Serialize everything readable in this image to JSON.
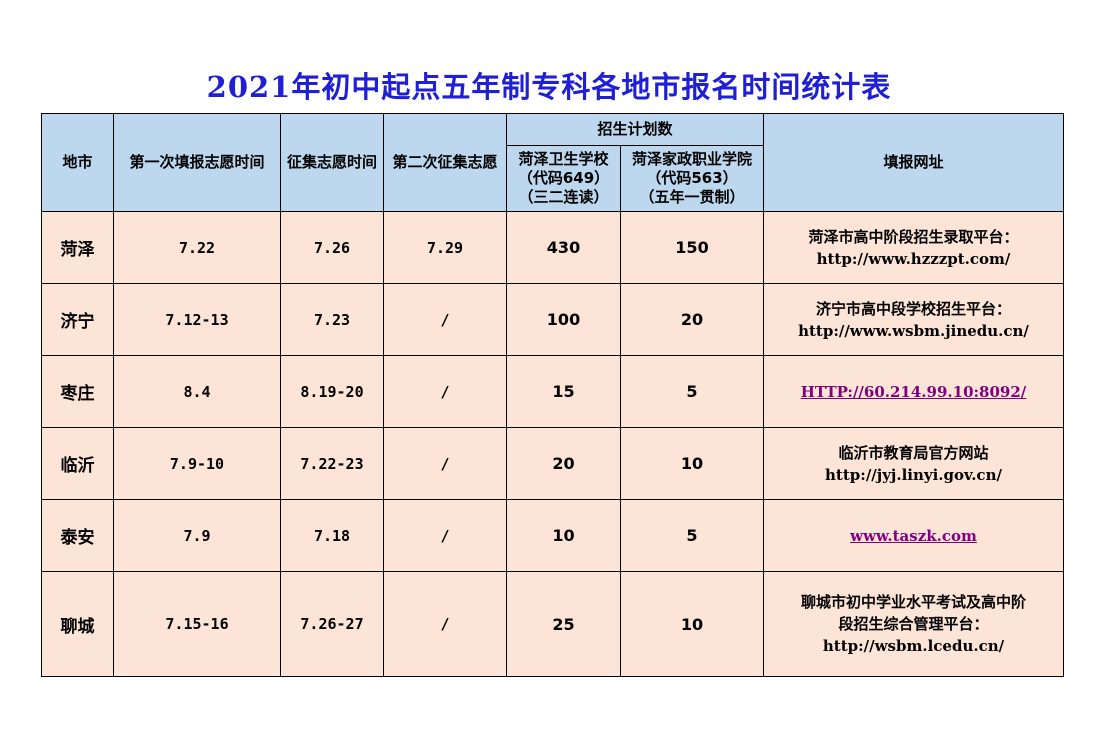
{
  "title": "2021年初中起点五年制专科各地市报名时间统计表",
  "colors": {
    "title": "#1f1fd6",
    "header_bg": "#bdd7ee",
    "body_bg": "#fce4d6",
    "link": "#800080"
  },
  "headers": {
    "city": "地市",
    "first": "第一次填报志愿时间",
    "collect": "征集志愿时间",
    "second": "第二次征集志愿",
    "plan": "招生计划数",
    "school1": [
      "菏泽卫生学校",
      "（代码649）",
      "（三二连读）"
    ],
    "school2": [
      "菏泽家政职业学院",
      "（代码563）",
      "（五年一贯制）"
    ],
    "url": "填报网址"
  },
  "rows": [
    {
      "city": "菏泽",
      "first": "7.22",
      "collect": "7.26",
      "second": "7.29",
      "s1": "430",
      "s2": "150",
      "url": [
        "菏泽市高中阶段招生录取平台：",
        "http://www.hzzzpt.com/"
      ],
      "link": false
    },
    {
      "city": "济宁",
      "first": "7.12-13",
      "collect": "7.23",
      "second": "/",
      "s1": "100",
      "s2": "20",
      "url": [
        "济宁市高中段学校招生平台：",
        "http://www.wsbm.jinedu.cn/"
      ],
      "link": false
    },
    {
      "city": "枣庄",
      "first": "8.4",
      "collect": "8.19-20",
      "second": "/",
      "s1": "15",
      "s2": "5",
      "url": [
        "HTTP://60.214.99.10:8092/"
      ],
      "link": true
    },
    {
      "city": "临沂",
      "first": "7.9-10",
      "collect": "7.22-23",
      "second": "/",
      "s1": "20",
      "s2": "10",
      "url": [
        "临沂市教育局官方网站",
        "http://jyj.linyi.gov.cn/"
      ],
      "link": false
    },
    {
      "city": "泰安",
      "first": "7.9",
      "collect": "7.18",
      "second": "/",
      "s1": "10",
      "s2": "5",
      "url": [
        "www.taszk.com"
      ],
      "link": true
    },
    {
      "city": "聊城",
      "first": "7.15-16",
      "collect": "7.26-27",
      "second": "/",
      "s1": "25",
      "s2": "10",
      "url": [
        "聊城市初中学业水平考试及高中阶",
        "段招生综合管理平台：",
        "http://wsbm.lcedu.cn/"
      ],
      "link": false
    }
  ]
}
